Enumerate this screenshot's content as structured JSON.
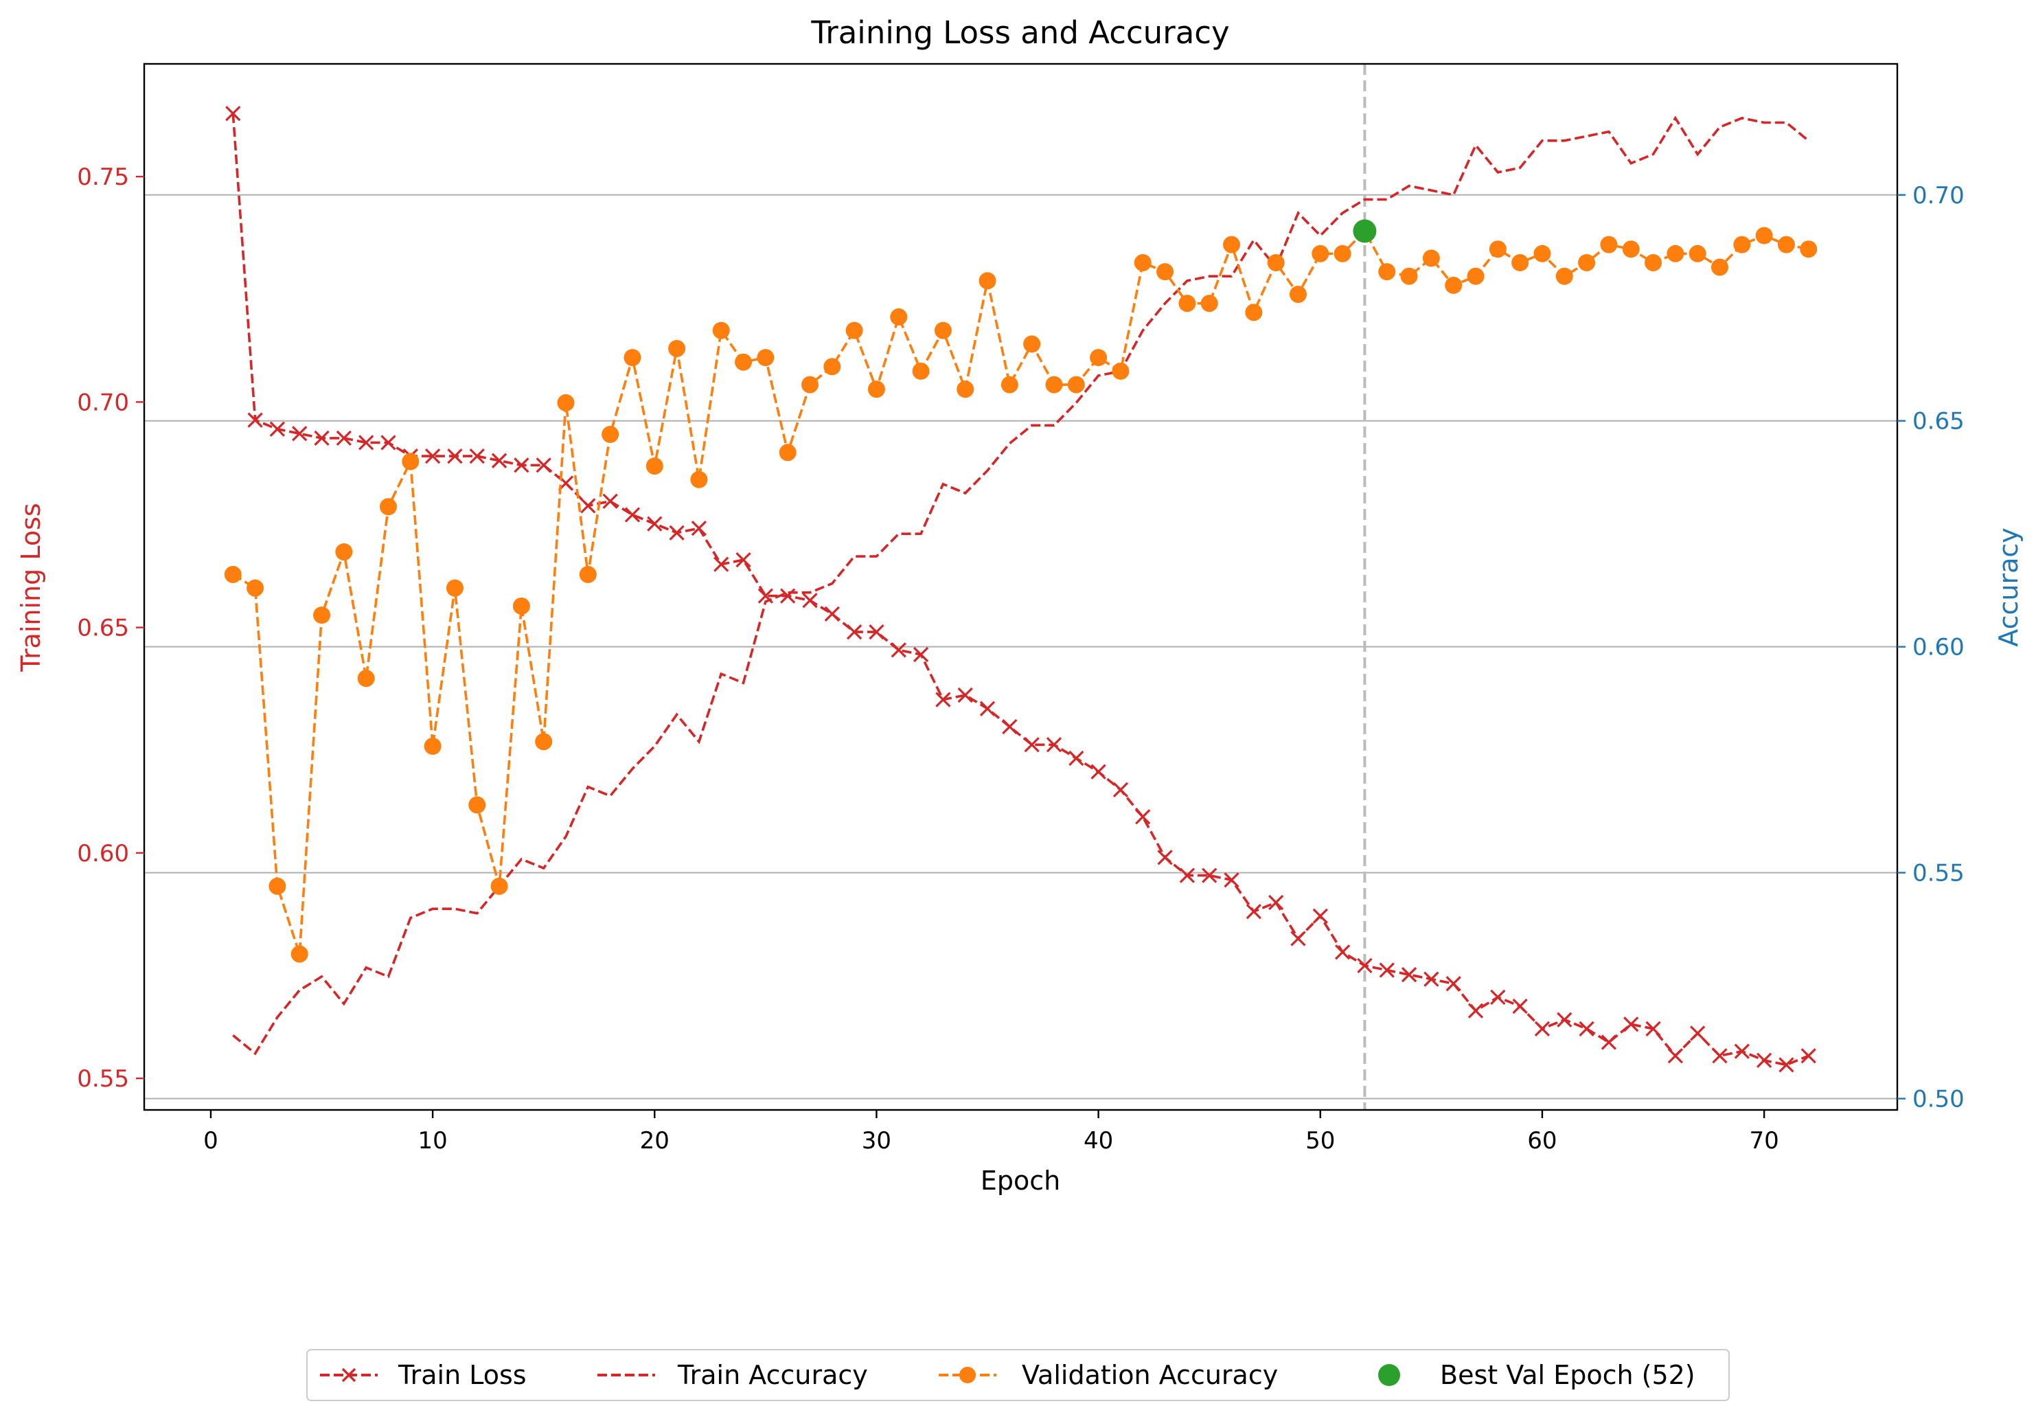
{
  "chart_data": {
    "type": "line",
    "title": "Training Loss and Accuracy",
    "xlabel": "Epoch",
    "ylabel_left": "Training Loss",
    "ylabel_right": "Accuracy",
    "xlim": [
      -3,
      76
    ],
    "ylim_left": [
      0.543,
      0.775
    ],
    "ylim_right": [
      0.4975,
      0.729
    ],
    "xticks": [
      0,
      10,
      20,
      30,
      40,
      50,
      60,
      70
    ],
    "yticks_left": [
      0.55,
      0.6,
      0.65,
      0.7,
      0.75
    ],
    "yticks_right": [
      0.5,
      0.55,
      0.6,
      0.65,
      0.7
    ],
    "grid": "horizontal grid lines on the right (accuracy) axis",
    "legend_position": "below the plot, centered, single row",
    "colors": {
      "loss": "#d62728",
      "train_acc": "#d62728",
      "val_acc": "#ff7f0e",
      "best": "#2ca02c",
      "vline": "#bbbbbb",
      "left_axis": "#d62728",
      "right_axis": "#1f77b4"
    },
    "x": [
      1,
      2,
      3,
      4,
      5,
      6,
      7,
      8,
      9,
      10,
      11,
      12,
      13,
      14,
      15,
      16,
      17,
      18,
      19,
      20,
      21,
      22,
      23,
      24,
      25,
      26,
      27,
      28,
      29,
      30,
      31,
      32,
      33,
      34,
      35,
      36,
      37,
      38,
      39,
      40,
      41,
      42,
      43,
      44,
      45,
      46,
      47,
      48,
      49,
      50,
      51,
      52,
      53,
      54,
      55,
      56,
      57,
      58,
      59,
      60,
      61,
      62,
      63,
      64,
      65,
      66,
      67,
      68,
      69,
      70,
      71,
      72
    ],
    "series": [
      {
        "name": "Train Loss",
        "axis": "left",
        "style": "dashed-x",
        "values": [
          0.764,
          0.696,
          0.694,
          0.693,
          0.692,
          0.692,
          0.691,
          0.691,
          0.688,
          0.688,
          0.688,
          0.688,
          0.687,
          0.686,
          0.686,
          0.682,
          0.677,
          0.678,
          0.675,
          0.673,
          0.671,
          0.672,
          0.664,
          0.665,
          0.657,
          0.657,
          0.656,
          0.653,
          0.649,
          0.649,
          0.645,
          0.644,
          0.634,
          0.635,
          0.632,
          0.628,
          0.624,
          0.624,
          0.621,
          0.618,
          0.614,
          0.608,
          0.599,
          0.595,
          0.595,
          0.594,
          0.587,
          0.589,
          0.581,
          0.586,
          0.578,
          0.575,
          0.574,
          0.573,
          0.572,
          0.571,
          0.565,
          0.568,
          0.566,
          0.561,
          0.563,
          0.561,
          0.558,
          0.562,
          0.561,
          0.555,
          0.56,
          0.555,
          0.556,
          0.554,
          0.553,
          0.555
        ]
      },
      {
        "name": "Train Accuracy",
        "axis": "right",
        "style": "dashed",
        "values": [
          0.514,
          0.51,
          0.518,
          0.524,
          0.527,
          0.521,
          0.529,
          0.527,
          0.54,
          0.542,
          0.542,
          0.541,
          0.547,
          0.553,
          0.551,
          0.558,
          0.569,
          0.567,
          0.573,
          0.578,
          0.585,
          0.579,
          0.594,
          0.592,
          0.61,
          0.612,
          0.612,
          0.614,
          0.62,
          0.62,
          0.625,
          0.625,
          0.636,
          0.634,
          0.639,
          0.645,
          0.649,
          0.649,
          0.654,
          0.66,
          0.661,
          0.67,
          0.676,
          0.681,
          0.682,
          0.682,
          0.69,
          0.684,
          0.696,
          0.691,
          0.696,
          0.699,
          0.699,
          0.702,
          0.701,
          0.7,
          0.711,
          0.705,
          0.706,
          0.712,
          0.712,
          0.713,
          0.714,
          0.707,
          0.709,
          0.717,
          0.709,
          0.715,
          0.717,
          0.716,
          0.716,
          0.712
        ]
      },
      {
        "name": "Validation Accuracy",
        "axis": "right",
        "style": "dashed-o",
        "values": [
          0.616,
          0.613,
          0.547,
          0.532,
          0.607,
          0.621,
          0.593,
          0.631,
          0.641,
          0.578,
          0.613,
          0.565,
          0.547,
          0.609,
          0.579,
          0.654,
          0.616,
          0.647,
          0.664,
          0.64,
          0.666,
          0.637,
          0.67,
          0.663,
          0.664,
          0.643,
          0.658,
          0.662,
          0.67,
          0.657,
          0.673,
          0.661,
          0.67,
          0.657,
          0.681,
          0.658,
          0.667,
          0.658,
          0.658,
          0.664,
          0.661,
          0.685,
          0.683,
          0.676,
          0.676,
          0.689,
          0.674,
          0.685,
          0.678,
          0.687,
          0.687,
          0.692,
          0.683,
          0.682,
          0.686,
          0.68,
          0.682,
          0.688,
          0.685,
          0.687,
          0.682,
          0.685,
          0.689,
          0.688,
          0.685,
          0.687,
          0.687,
          0.684,
          0.689,
          0.691,
          0.689,
          0.688
        ]
      },
      {
        "name": "Best Val Epoch (52)",
        "axis": "right",
        "style": "marker",
        "x": 52,
        "value": 0.692
      }
    ],
    "vline_x": 52
  }
}
